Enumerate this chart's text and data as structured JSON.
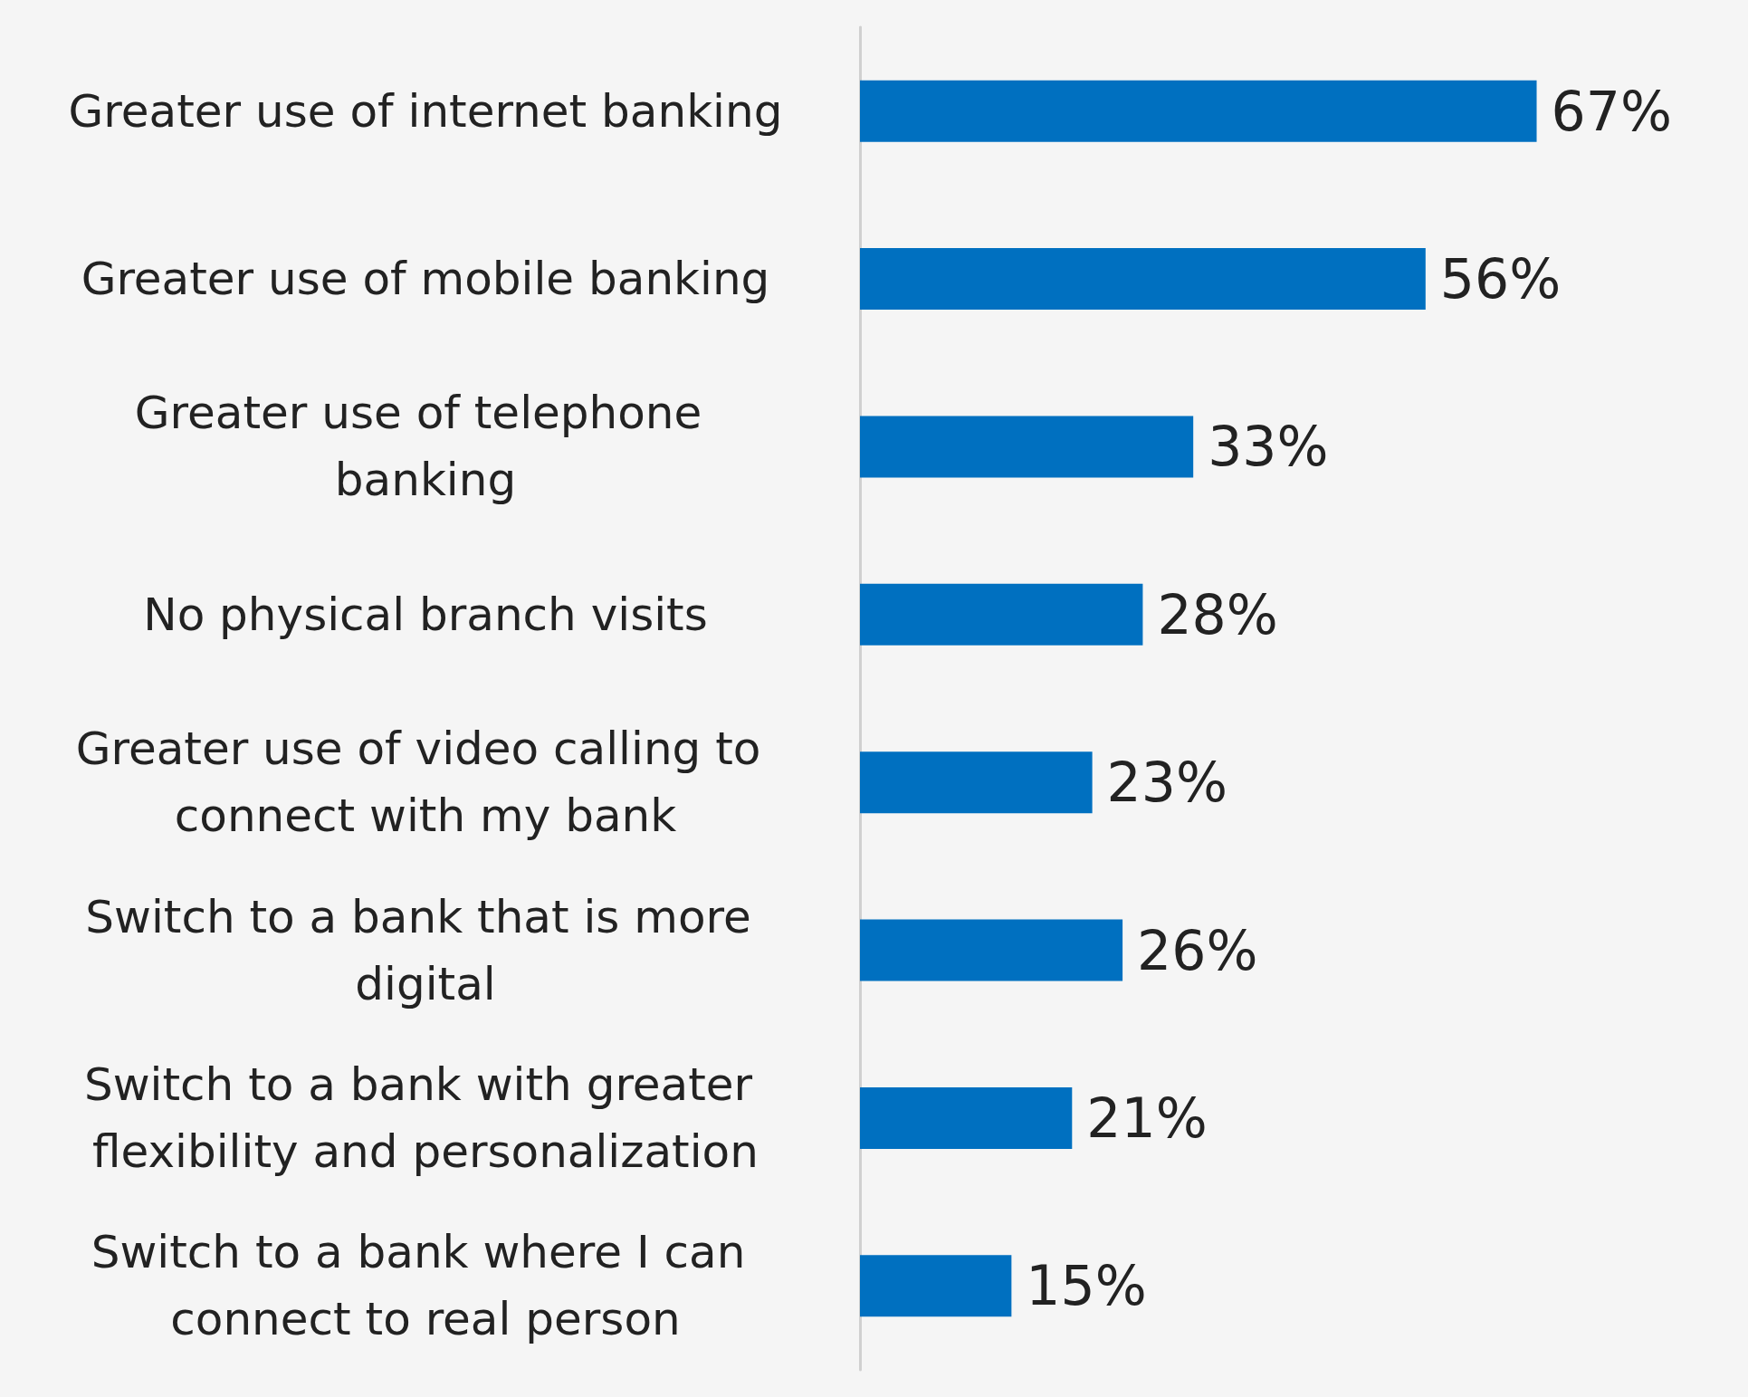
{
  "chart_data": {
    "type": "bar",
    "orientation": "horizontal",
    "categories": [
      "Greater use of internet banking",
      "Greater use of mobile banking",
      "Greater use of telephone banking",
      "No physical branch visits",
      "Greater use of video calling to connect with my bank",
      "Switch to a bank that is more digital",
      "Switch to a bank with greater flexibility and personalization",
      "Switch to a bank where I can connect to real person"
    ],
    "values": [
      67,
      56,
      33,
      28,
      23,
      26,
      21,
      15
    ],
    "value_labels": [
      "67%",
      "56%",
      "33%",
      "28%",
      "23%",
      "26%",
      "21%",
      "15%"
    ],
    "color": "#0070c0",
    "grid": false
  }
}
